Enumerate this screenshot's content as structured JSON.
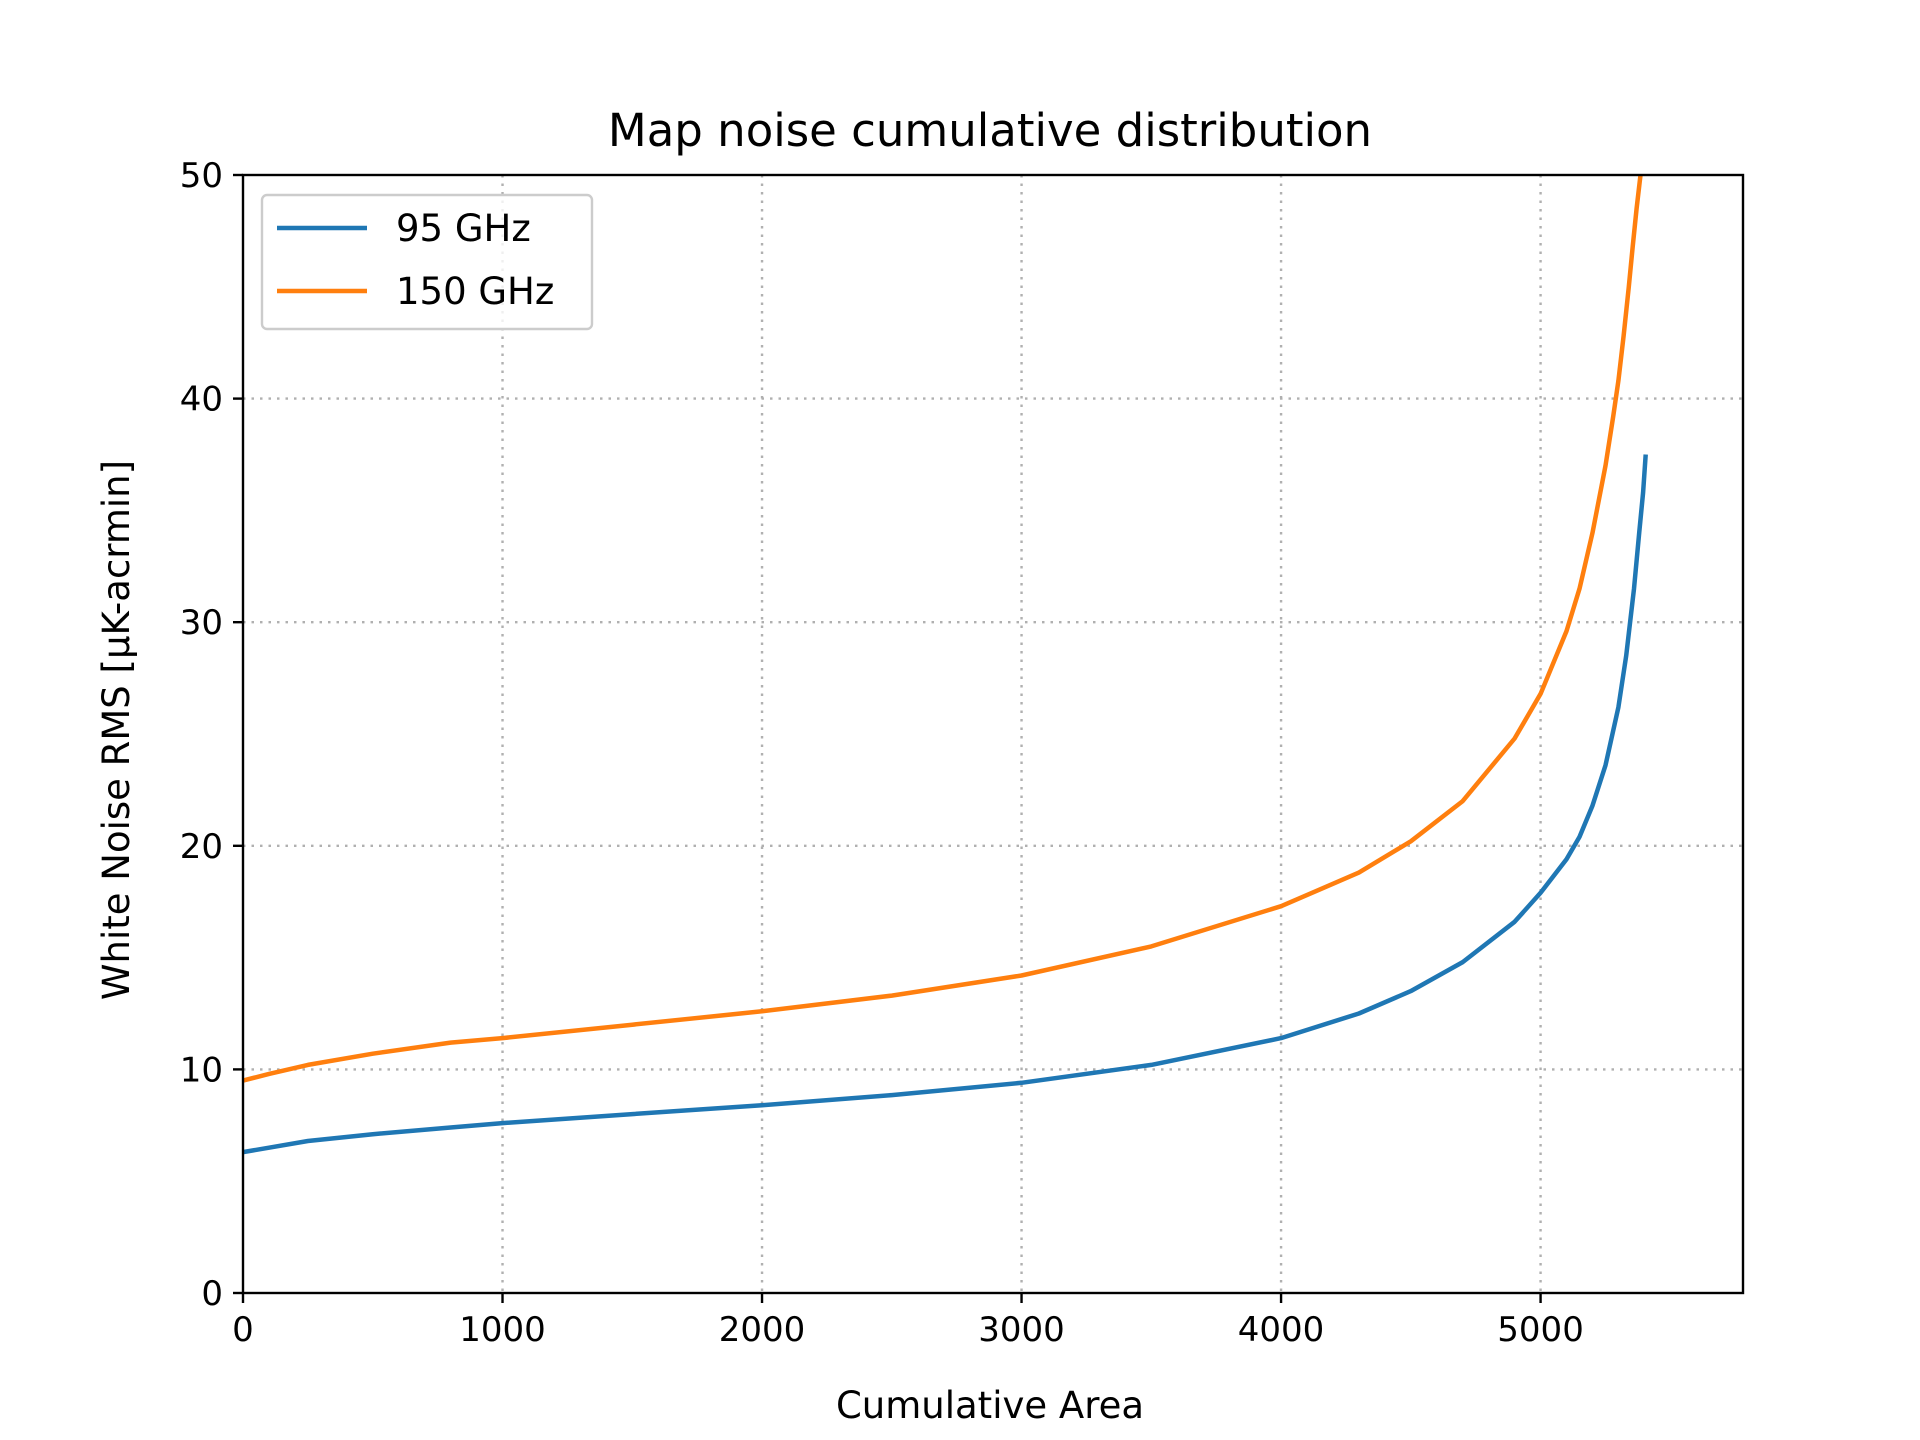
{
  "chart_data": {
    "type": "line",
    "title": "Map noise cumulative distribution",
    "xlabel": "Cumulative Area",
    "ylabel": "White Noise RMS [μK-acrmin]",
    "xlim": [
      0,
      5780
    ],
    "ylim": [
      0,
      50
    ],
    "xticks": [
      0,
      1000,
      2000,
      3000,
      4000,
      5000
    ],
    "yticks": [
      0,
      10,
      20,
      30,
      40,
      50
    ],
    "xtick_labels": [
      "0",
      "1000",
      "2000",
      "3000",
      "4000",
      "5000"
    ],
    "ytick_labels": [
      "0",
      "10",
      "20",
      "30",
      "40",
      "50"
    ],
    "grid": true,
    "legend_position": "top-left",
    "series": [
      {
        "name": "95 GHz",
        "color": "#1f77b4",
        "x": [
          0,
          100,
          250,
          500,
          800,
          1000,
          1500,
          2000,
          2500,
          3000,
          3500,
          4000,
          4300,
          4500,
          4700,
          4900,
          5000,
          5100,
          5150,
          5200,
          5250,
          5300,
          5330,
          5360,
          5380,
          5395,
          5405
        ],
        "y": [
          6.3,
          6.5,
          6.8,
          7.1,
          7.4,
          7.6,
          8.0,
          8.4,
          8.85,
          9.4,
          10.2,
          11.4,
          12.5,
          13.5,
          14.8,
          16.6,
          17.9,
          19.4,
          20.4,
          21.8,
          23.6,
          26.2,
          28.5,
          31.5,
          34.0,
          35.8,
          37.5
        ]
      },
      {
        "name": "150 GHz",
        "color": "#ff7f0e",
        "x": [
          0,
          100,
          250,
          500,
          800,
          1000,
          1500,
          2000,
          2500,
          3000,
          3500,
          4000,
          4300,
          4500,
          4700,
          4900,
          5000,
          5100,
          5150,
          5200,
          5250,
          5280,
          5300,
          5320,
          5340,
          5355,
          5370,
          5385
        ],
        "y": [
          9.5,
          9.8,
          10.2,
          10.7,
          11.2,
          11.4,
          12.0,
          12.6,
          13.3,
          14.2,
          15.5,
          17.3,
          18.8,
          20.2,
          22.0,
          24.8,
          26.8,
          29.6,
          31.5,
          34.0,
          37.0,
          39.2,
          40.8,
          42.8,
          45.0,
          46.8,
          48.5,
          50.0
        ]
      }
    ]
  }
}
